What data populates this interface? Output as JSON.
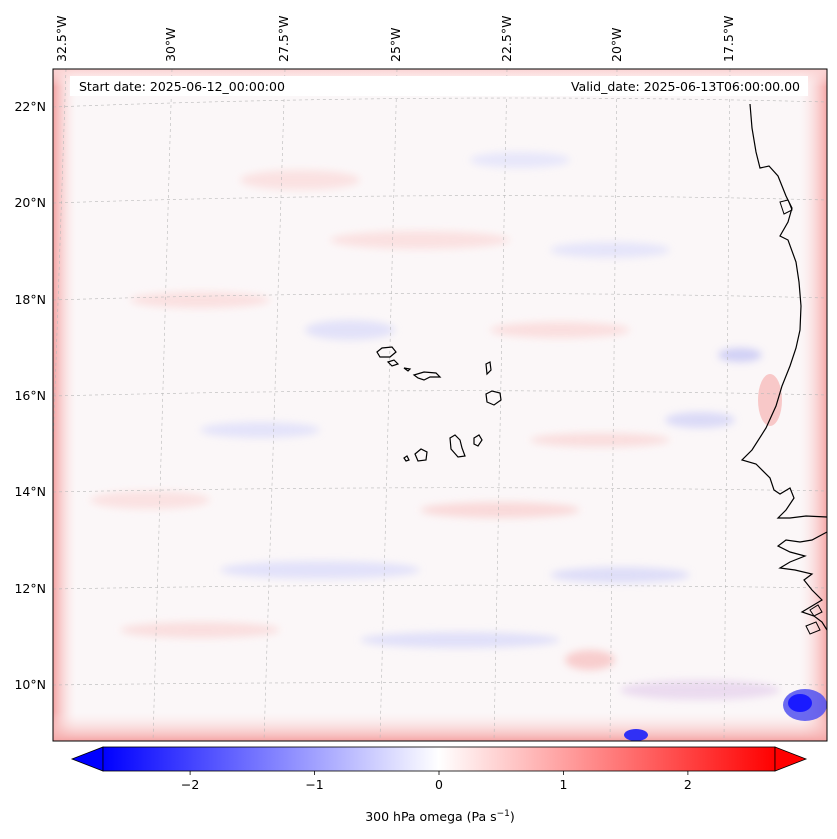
{
  "map": {
    "start_date_text": "Start date: 2025-06-12_00:00:00",
    "valid_date_text": "Valid_date: 2025-06-13T06:00:00.00",
    "longitude_labels": [
      "32.5°W",
      "30°W",
      "27.5°W",
      "25°W",
      "22.5°W",
      "20°W",
      "17.5°W"
    ],
    "latitude_labels": [
      "22°N",
      "20°N",
      "18°N",
      "16°N",
      "14°N",
      "12°N",
      "10°N"
    ],
    "islands": [
      "Santo Antão",
      "São Vicente",
      "Santa Luzia",
      "São Nicolau",
      "Sal",
      "Boa Vista",
      "Brava",
      "Fogo",
      "Santiago",
      "Maio"
    ]
  },
  "colorbar": {
    "label_main": "300 hPa omega (Pa s",
    "label_exp": "−1",
    "label_close": ")",
    "ticks": [
      "−2",
      "−1",
      "0",
      "1",
      "2"
    ],
    "min": -2.7,
    "max": 2.7,
    "colors": {
      "low": "#0000ff",
      "mid": "#ffffff",
      "high": "#ff0000"
    }
  }
}
